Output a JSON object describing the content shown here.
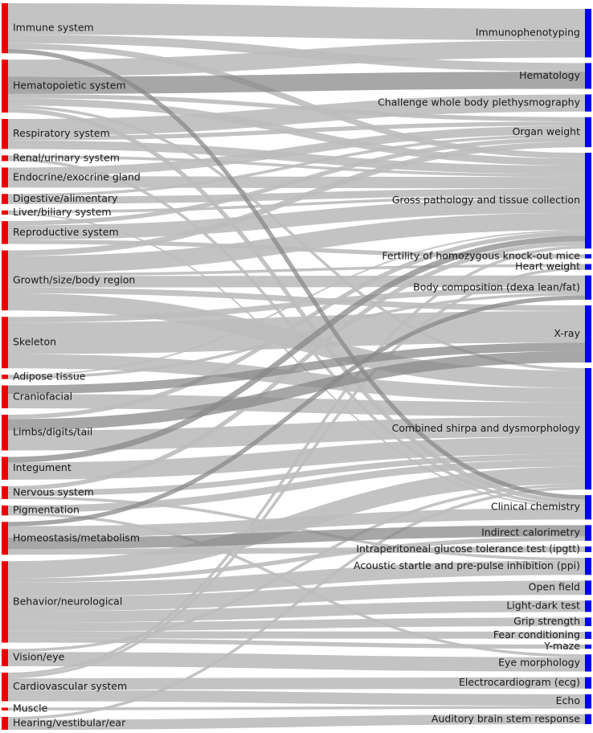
{
  "chart_data": {
    "type": "sankey",
    "colors": {
      "source": "#ee0000",
      "target": "#0000ee",
      "link": "#bdbdbd",
      "link_dark": "#8a8a8a"
    },
    "sources": [
      "Immune system",
      "Hematopoietic system",
      "Respiratory system",
      "Renal/urinary system",
      "Endocrine/exocrine gland",
      "Digestive/alimentary",
      "Liver/biliary system",
      "Reproductive system",
      "Growth/size/body region",
      "Skeleton",
      "Adipose tissue",
      "Craniofacial",
      "Limbs/digits/tail",
      "Integument",
      "Nervous system",
      "Pigmentation",
      "Homeostasis/metabolism",
      "Behavior/neurological",
      "Vision/eye",
      "Cardiovascular system",
      "Muscle",
      "Hearing/vestibular/ear"
    ],
    "targets": [
      "Immunophenotyping",
      "Hematology",
      "Challenge whole body plethysmography",
      "Organ weight",
      "Gross pathology and tissue collection",
      "Fertility of homozygous knock-out mice",
      "Heart weight",
      "Body composition (dexa lean/fat)",
      "X-ray",
      "Combined shirpa and dysmorphology",
      "Clinical chemistry",
      "Indirect calorimetry",
      "Intraperitoneal glucose tolerance test (ipgtt)",
      "Acoustic startle and pre-pulse inhibition (ppi)",
      "Open field",
      "Light-dark test",
      "Grip strength",
      "Fear conditioning",
      "Y-maze",
      "Eye morphology",
      "Electrocardiogram (ecg)",
      "Echo",
      "Auditory brain stem response"
    ],
    "links": [
      {
        "source": "Immune system",
        "target": "Immunophenotyping",
        "value": 22
      },
      {
        "source": "Immune system",
        "target": "Hematology",
        "value": 6
      },
      {
        "source": "Immune system",
        "target": "Gross pathology and tissue collection",
        "value": 4
      },
      {
        "source": "Immune system",
        "target": "Clinical chemistry",
        "value": 3
      },
      {
        "source": "Hematopoietic system",
        "target": "Immunophenotyping",
        "value": 12
      },
      {
        "source": "Hematopoietic system",
        "target": "Hematology",
        "value": 12
      },
      {
        "source": "Hematopoietic system",
        "target": "Gross pathology and tissue collection",
        "value": 5
      },
      {
        "source": "Hematopoietic system",
        "target": "Organ weight",
        "value": 3
      },
      {
        "source": "Hematopoietic system",
        "target": "Clinical chemistry",
        "value": 3
      },
      {
        "source": "Hematopoietic system",
        "target": "Combined shirpa and dysmorphology",
        "value": 2
      },
      {
        "source": "Respiratory system",
        "target": "Challenge whole body plethysmography",
        "value": 12
      },
      {
        "source": "Respiratory system",
        "target": "Gross pathology and tissue collection",
        "value": 6
      },
      {
        "source": "Respiratory system",
        "target": "Organ weight",
        "value": 3
      },
      {
        "source": "Renal/urinary system",
        "target": "Gross pathology and tissue collection",
        "value": 2
      },
      {
        "source": "Renal/urinary system",
        "target": "Clinical chemistry",
        "value": 2
      },
      {
        "source": "Endocrine/exocrine gland",
        "target": "Organ weight",
        "value": 6
      },
      {
        "source": "Endocrine/exocrine gland",
        "target": "Gross pathology and tissue collection",
        "value": 8
      },
      {
        "source": "Digestive/alimentary",
        "target": "Gross pathology and tissue collection",
        "value": 5
      },
      {
        "source": "Digestive/alimentary",
        "target": "Organ weight",
        "value": 2
      },
      {
        "source": "Liver/biliary system",
        "target": "Gross pathology and tissue collection",
        "value": 2
      },
      {
        "source": "Liver/biliary system",
        "target": "Clinical chemistry",
        "value": 1
      },
      {
        "source": "Reproductive system",
        "target": "Gross pathology and tissue collection",
        "value": 10
      },
      {
        "source": "Reproductive system",
        "target": "Fertility of homozygous knock-out mice",
        "value": 3
      },
      {
        "source": "Reproductive system",
        "target": "Organ weight",
        "value": 3
      },
      {
        "source": "Growth/size/body region",
        "target": "Gross pathology and tissue collection",
        "value": 12
      },
      {
        "source": "Growth/size/body region",
        "target": "Body composition (dexa lean/fat)",
        "value": 8
      },
      {
        "source": "Growth/size/body region",
        "target": "Combined shirpa and dysmorphology",
        "value": 12
      },
      {
        "source": "Growth/size/body region",
        "target": "Heart weight",
        "value": 2
      },
      {
        "source": "Growth/size/body region",
        "target": "X-ray",
        "value": 4
      },
      {
        "source": "Growth/size/body region",
        "target": "Organ weight",
        "value": 4
      },
      {
        "source": "Skeleton",
        "target": "X-ray",
        "value": 22
      },
      {
        "source": "Skeleton",
        "target": "Combined shirpa and dysmorphology",
        "value": 10
      },
      {
        "source": "Skeleton",
        "target": "Body composition (dexa lean/fat)",
        "value": 4
      },
      {
        "source": "Adipose tissue",
        "target": "Body composition (dexa lean/fat)",
        "value": 2
      },
      {
        "source": "Adipose tissue",
        "target": "Gross pathology and tissue collection",
        "value": 1
      },
      {
        "source": "Craniofacial",
        "target": "Combined shirpa and dysmorphology",
        "value": 10
      },
      {
        "source": "Craniofacial",
        "target": "X-ray",
        "value": 6
      },
      {
        "source": "Limbs/digits/tail",
        "target": "Combined shirpa and dysmorphology",
        "value": 14
      },
      {
        "source": "Limbs/digits/tail",
        "target": "X-ray",
        "value": 8
      },
      {
        "source": "Limbs/digits/tail",
        "target": "Gross pathology and tissue collection",
        "value": 3
      },
      {
        "source": "Integument",
        "target": "Combined shirpa and dysmorphology",
        "value": 12
      },
      {
        "source": "Integument",
        "target": "Gross pathology and tissue collection",
        "value": 4
      },
      {
        "source": "Nervous system",
        "target": "Combined shirpa and dysmorphology",
        "value": 4
      },
      {
        "source": "Nervous system",
        "target": "Gross pathology and tissue collection",
        "value": 3
      },
      {
        "source": "Nervous system",
        "target": "Acoustic startle and pre-pulse inhibition (ppi)",
        "value": 2
      },
      {
        "source": "Pigmentation",
        "target": "Combined shirpa and dysmorphology",
        "value": 5
      },
      {
        "source": "Pigmentation",
        "target": "Eye morphology",
        "value": 2
      },
      {
        "source": "Homeostasis/metabolism",
        "target": "Clinical chemistry",
        "value": 8
      },
      {
        "source": "Homeostasis/metabolism",
        "target": "Indirect calorimetry",
        "value": 8
      },
      {
        "source": "Homeostasis/metabolism",
        "target": "Intraperitoneal glucose tolerance test (ipgtt)",
        "value": 4
      },
      {
        "source": "Homeostasis/metabolism",
        "target": "Body composition (dexa lean/fat)",
        "value": 3
      },
      {
        "source": "Behavior/neurological",
        "target": "Combined shirpa and dysmorphology",
        "value": 12
      },
      {
        "source": "Behavior/neurological",
        "target": "Acoustic startle and pre-pulse inhibition (ppi)",
        "value": 10
      },
      {
        "source": "Behavior/neurological",
        "target": "Open field",
        "value": 10
      },
      {
        "source": "Behavior/neurological",
        "target": "Light-dark test",
        "value": 8
      },
      {
        "source": "Behavior/neurological",
        "target": "Grip strength",
        "value": 6
      },
      {
        "source": "Behavior/neurological",
        "target": "Fear conditioning",
        "value": 5
      },
      {
        "source": "Behavior/neurological",
        "target": "Y-maze",
        "value": 3
      },
      {
        "source": "Behavior/neurological",
        "target": "Indirect calorimetry",
        "value": 3
      },
      {
        "source": "Vision/eye",
        "target": "Eye morphology",
        "value": 10
      },
      {
        "source": "Vision/eye",
        "target": "Combined shirpa and dysmorphology",
        "value": 2
      },
      {
        "source": "Cardiovascular system",
        "target": "Electrocardiogram (ecg)",
        "value": 8
      },
      {
        "source": "Cardiovascular system",
        "target": "Echo",
        "value": 8
      },
      {
        "source": "Cardiovascular system",
        "target": "Heart weight",
        "value": 2
      },
      {
        "source": "Cardiovascular system",
        "target": "Gross pathology and tissue collection",
        "value": 2
      },
      {
        "source": "Muscle",
        "target": "Echo",
        "value": 2
      },
      {
        "source": "Hearing/vestibular/ear",
        "target": "Auditory brain stem response",
        "value": 7
      },
      {
        "source": "Hearing/vestibular/ear",
        "target": "Combined shirpa and dysmorphology",
        "value": 2
      }
    ],
    "highlighted_links": [
      {
        "source": "Immune system",
        "target": "Clinical chemistry"
      },
      {
        "source": "Hematopoietic system",
        "target": "Hematology"
      },
      {
        "source": "Homeostasis/metabolism",
        "target": "Indirect calorimetry"
      },
      {
        "source": "Limbs/digits/tail",
        "target": "X-ray"
      },
      {
        "source": "Integument",
        "target": "Gross pathology and tissue collection"
      },
      {
        "source": "Craniofacial",
        "target": "X-ray"
      },
      {
        "source": "Homeostasis/metabolism",
        "target": "Body composition (dexa lean/fat)"
      }
    ]
  }
}
